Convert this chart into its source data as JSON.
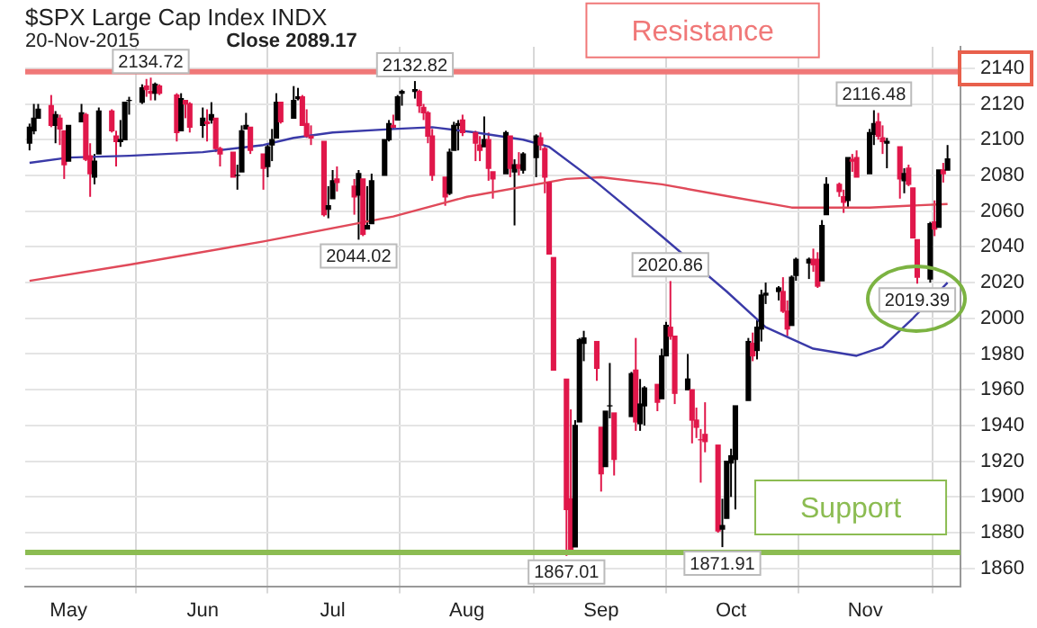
{
  "chart_data": {
    "type": "candlestick",
    "title": "$SPX Large Cap Index INDX",
    "subtitle": "20-Nov-2015",
    "x": [
      "2015-04-22",
      "2015-04-23",
      "2015-04-24",
      "2015-04-27",
      "2015-04-28",
      "2015-04-29",
      "2015-04-30",
      "2015-05-01",
      "2015-05-04",
      "2015-05-05",
      "2015-05-06",
      "2015-05-07",
      "2015-05-08",
      "2015-05-11",
      "2015-05-12",
      "2015-05-13",
      "2015-05-14",
      "2015-05-15",
      "2015-05-18",
      "2015-05-19",
      "2015-05-20",
      "2015-05-21",
      "2015-05-22",
      "2015-05-26",
      "2015-05-27",
      "2015-05-28",
      "2015-05-29",
      "2015-06-01",
      "2015-06-02",
      "2015-06-03",
      "2015-06-04",
      "2015-06-05",
      "2015-06-08",
      "2015-06-09",
      "2015-06-10",
      "2015-06-11",
      "2015-06-12",
      "2015-06-15",
      "2015-06-16",
      "2015-06-17",
      "2015-06-18",
      "2015-06-19",
      "2015-06-22",
      "2015-06-23",
      "2015-06-24",
      "2015-06-25",
      "2015-06-26",
      "2015-06-29",
      "2015-06-30",
      "2015-07-01",
      "2015-07-02",
      "2015-07-06",
      "2015-07-07",
      "2015-07-08",
      "2015-07-09",
      "2015-07-10",
      "2015-07-13",
      "2015-07-14",
      "2015-07-15",
      "2015-07-16",
      "2015-07-17",
      "2015-07-20",
      "2015-07-21",
      "2015-07-22",
      "2015-07-23",
      "2015-07-24",
      "2015-07-27",
      "2015-07-28",
      "2015-07-29",
      "2015-07-30",
      "2015-07-31",
      "2015-08-03",
      "2015-08-04",
      "2015-08-05",
      "2015-08-06",
      "2015-08-07",
      "2015-08-10",
      "2015-08-11",
      "2015-08-12",
      "2015-08-13",
      "2015-08-14",
      "2015-08-17",
      "2015-08-18",
      "2015-08-19",
      "2015-08-20",
      "2015-08-21",
      "2015-08-24",
      "2015-08-25",
      "2015-08-26",
      "2015-08-27",
      "2015-08-28",
      "2015-08-31",
      "2015-09-01",
      "2015-09-02",
      "2015-09-03",
      "2015-09-04",
      "2015-09-08",
      "2015-09-09",
      "2015-09-10",
      "2015-09-11",
      "2015-09-14",
      "2015-09-15",
      "2015-09-16",
      "2015-09-17",
      "2015-09-18",
      "2015-09-21",
      "2015-09-22",
      "2015-09-23",
      "2015-09-24",
      "2015-09-25",
      "2015-09-28",
      "2015-09-29",
      "2015-09-30",
      "2015-10-01",
      "2015-10-02",
      "2015-10-05",
      "2015-10-06",
      "2015-10-07",
      "2015-10-08",
      "2015-10-09",
      "2015-10-12",
      "2015-10-13",
      "2015-10-14",
      "2015-10-15",
      "2015-10-16",
      "2015-10-19",
      "2015-10-20",
      "2015-10-21",
      "2015-10-22",
      "2015-10-23",
      "2015-10-26",
      "2015-10-27",
      "2015-10-28",
      "2015-10-29",
      "2015-10-30",
      "2015-11-02",
      "2015-11-03",
      "2015-11-04",
      "2015-11-05",
      "2015-11-06",
      "2015-11-09",
      "2015-11-10",
      "2015-11-11",
      "2015-11-12",
      "2015-11-13",
      "2015-11-16",
      "2015-11-17",
      "2015-11-18",
      "2015-11-19",
      "2015-11-20"
    ],
    "ohlc": [
      [
        2098,
        2109,
        2094,
        2107
      ],
      [
        2105,
        2120,
        2103,
        2112
      ],
      [
        2112,
        2120,
        2112,
        2117
      ],
      [
        2119,
        2125,
        2107,
        2108
      ],
      [
        2108,
        2116,
        2098,
        2114
      ],
      [
        2112,
        2114,
        2097,
        2106
      ],
      [
        2105,
        2105,
        2078,
        2086
      ],
      [
        2088,
        2108,
        2088,
        2108
      ],
      [
        2110,
        2120,
        2110,
        2115
      ],
      [
        2114,
        2115,
        2088,
        2089
      ],
      [
        2091,
        2098,
        2068,
        2081
      ],
      [
        2079,
        2092,
        2075,
        2088
      ],
      [
        2092,
        2118,
        2092,
        2116
      ],
      [
        2116,
        2117,
        2104,
        2105
      ],
      [
        2102,
        2105,
        2085,
        2099
      ],
      [
        2100,
        2111,
        2096,
        2099
      ],
      [
        2100,
        2121,
        2100,
        2121
      ],
      [
        2122,
        2124,
        2114,
        2122
      ],
      [
        2121,
        2131,
        2120,
        2129
      ],
      [
        2130,
        2134,
        2124,
        2128
      ],
      [
        2127,
        2134.72,
        2122,
        2126
      ],
      [
        2126,
        2132,
        2122,
        2131
      ],
      [
        2130,
        2131,
        2125,
        2126
      ],
      [
        2125,
        2126,
        2099,
        2104
      ],
      [
        2105,
        2126,
        2105,
        2123
      ],
      [
        2122,
        2122,
        2112,
        2120
      ],
      [
        2120,
        2121,
        2104,
        2107
      ],
      [
        2108,
        2118,
        2101,
        2112
      ],
      [
        2110,
        2117,
        2099,
        2109
      ],
      [
        2111,
        2121,
        2109,
        2114
      ],
      [
        2112,
        2112,
        2093,
        2095
      ],
      [
        2095,
        2096,
        2085,
        2092
      ],
      [
        2093,
        2093,
        2079,
        2079
      ],
      [
        2080,
        2086,
        2072,
        2080
      ],
      [
        2082,
        2108,
        2082,
        2105
      ],
      [
        2106,
        2115,
        2106,
        2108
      ],
      [
        2107,
        2107,
        2092,
        2094
      ],
      [
        2092,
        2092,
        2072,
        2084
      ],
      [
        2085,
        2098,
        2079,
        2096
      ],
      [
        2097,
        2106,
        2088,
        2100
      ],
      [
        2101,
        2126,
        2101,
        2121
      ],
      [
        2121,
        2121,
        2109,
        2110
      ],
      [
        2112,
        2130,
        2112,
        2122
      ],
      [
        2123,
        2129,
        2122,
        2124
      ],
      [
        2124,
        2125,
        2108,
        2108
      ],
      [
        2109,
        2117,
        2101,
        2102
      ],
      [
        2102,
        2108,
        2097,
        2101
      ],
      [
        2099,
        2099,
        2057,
        2058
      ],
      [
        2061,
        2074,
        2056,
        2063
      ],
      [
        2067,
        2083,
        2067,
        2077
      ],
      [
        2078,
        2085,
        2071,
        2076
      ],
      [
        2074,
        2078,
        2058,
        2068
      ],
      [
        2069,
        2083,
        2044.02,
        2081
      ],
      [
        2078,
        2078,
        2046,
        2047
      ],
      [
        2050,
        2074,
        2050,
        2052
      ],
      [
        2053,
        2081,
        2053,
        2077
      ],
      [
        2080,
        2100,
        2080,
        2100
      ],
      [
        2100,
        2111,
        2099,
        2109
      ],
      [
        2108,
        2114,
        2106,
        2107
      ],
      [
        2111,
        2125,
        2111,
        2124
      ],
      [
        2126,
        2128,
        2119,
        2127
      ],
      [
        2127,
        2132.82,
        2123,
        2128
      ],
      [
        2127,
        2128,
        2115,
        2119
      ],
      [
        2118,
        2120,
        2111,
        2115
      ],
      [
        2115,
        2116,
        2098,
        2102
      ],
      [
        2102,
        2106,
        2077,
        2080
      ],
      [
        2079,
        2079,
        2063,
        2068
      ],
      [
        2070,
        2095,
        2069,
        2093
      ],
      [
        2094,
        2110,
        2094,
        2108
      ],
      [
        2108,
        2111,
        2094,
        2109
      ],
      [
        2111,
        2114,
        2102,
        2104
      ],
      [
        2104,
        2105,
        2088,
        2098
      ],
      [
        2097,
        2102,
        2088,
        2094
      ],
      [
        2096,
        2113,
        2096,
        2100
      ],
      [
        2100,
        2104,
        2077,
        2084
      ],
      [
        2082,
        2082,
        2067,
        2078
      ],
      [
        2081,
        2105,
        2081,
        2104
      ],
      [
        2102,
        2102,
        2079,
        2084
      ],
      [
        2082,
        2089,
        2052,
        2086
      ],
      [
        2086,
        2093,
        2080,
        2084
      ],
      [
        2083,
        2093,
        2081,
        2092
      ],
      [
        2090,
        2103,
        2079,
        2102
      ],
      [
        2101,
        2104,
        2094,
        2097
      ],
      [
        2095,
        2096,
        2070,
        2079
      ],
      [
        2076,
        2076,
        2036,
        2036
      ],
      [
        2034,
        2034,
        1971,
        1971
      ],
      [
        1966,
        1966,
        1867.01,
        1893
      ],
      [
        1899,
        1949,
        1868,
        1868
      ],
      [
        1872,
        1943,
        1872,
        1940
      ],
      [
        1942,
        1989,
        1942,
        1988
      ],
      [
        1986,
        1993,
        1976,
        1989
      ],
      [
        1987,
        1987,
        1965,
        1972
      ],
      [
        1939,
        1939,
        1903,
        1913
      ],
      [
        1917,
        1948,
        1917,
        1948
      ],
      [
        1951,
        1975,
        1944,
        1951
      ],
      [
        1947,
        1947,
        1912,
        1921
      ],
      [
        1945,
        1970,
        1945,
        1969
      ],
      [
        1971,
        1989,
        1937,
        1942
      ],
      [
        1941,
        1966,
        1937,
        1952
      ],
      [
        1951,
        1962,
        1940,
        1961
      ],
      [
        1963,
        1963,
        1948,
        1953
      ],
      [
        1955,
        1983,
        1955,
        1979
      ],
      [
        1979,
        1998,
        1979,
        1996
      ],
      [
        1995,
        2020.86,
        1988,
        1990
      ],
      [
        1990,
        1990,
        1952,
        1958
      ],
      [
        1960,
        1980,
        1960,
        1966
      ],
      [
        1960,
        1960,
        1930,
        1943
      ],
      [
        1943,
        1950,
        1933,
        1939
      ],
      [
        1932,
        1938,
        1908,
        1932
      ],
      [
        1935,
        1953,
        1925,
        1931
      ],
      [
        1929,
        1929,
        1880,
        1881
      ],
      [
        1882,
        1899,
        1871.91,
        1884
      ],
      [
        1888,
        1920,
        1888,
        1920
      ],
      [
        1919,
        1927,
        1900,
        1923
      ],
      [
        1921,
        1951,
        1893,
        1951
      ],
      [
        1954,
        1989,
        1954,
        1987
      ],
      [
        1986,
        1992,
        1976,
        1979
      ],
      [
        1982,
        1999,
        1977,
        1995
      ],
      [
        1994,
        2016,
        1987,
        2013
      ],
      [
        2013,
        2020,
        2008,
        2014
      ],
      [
        2015,
        2018,
        2010,
        2017
      ],
      [
        2015,
        2023,
        2003,
        2004
      ],
      [
        2004,
        2010,
        1990,
        1994
      ],
      [
        1996,
        2024,
        1996,
        2023
      ],
      [
        2024,
        2034,
        2021,
        2033
      ],
      [
        2031,
        2034,
        2022,
        2033
      ],
      [
        2033,
        2039,
        2026,
        2030
      ],
      [
        2033,
        2037,
        2017,
        2018
      ],
      [
        2021,
        2055,
        2021,
        2052
      ],
      [
        2058,
        2079,
        2058,
        2075
      ],
      [
        2075,
        2076,
        2068,
        2071
      ],
      [
        2068,
        2072,
        2059,
        2065
      ],
      [
        2066,
        2090,
        2062,
        2090
      ],
      [
        2088,
        2092,
        2082,
        2089
      ],
      [
        2090,
        2094,
        2079,
        2079
      ],
      [
        2081,
        2106,
        2081,
        2104
      ],
      [
        2103,
        2116.48,
        2097,
        2109
      ],
      [
        2110,
        2115,
        2100,
        2102
      ],
      [
        2101,
        2108,
        2092,
        2099
      ],
      [
        2098,
        2101,
        2084,
        2099
      ],
      [
        2096,
        2096,
        2067,
        2078
      ],
      [
        2077,
        2084,
        2070,
        2081
      ],
      [
        2084,
        2086,
        2074,
        2075
      ],
      [
        2073,
        2073,
        2045,
        2045
      ],
      [
        2044,
        2044,
        2019.39,
        2023
      ],
      [
        2022,
        2054,
        2020,
        2053
      ],
      [
        2054,
        2066,
        2046,
        2050
      ],
      [
        2051,
        2083,
        2051,
        2083
      ],
      [
        2083,
        2087,
        2076,
        2081
      ],
      [
        2083,
        2097,
        2083,
        2089.17
      ]
    ],
    "colors": [
      "#000000",
      "#000000",
      "#000000",
      "#e0174a",
      "#000000",
      "#e0174a",
      "#e0174a",
      "#000000",
      "#000000",
      "#e0174a",
      "#e0174a",
      "#000000",
      "#000000",
      "#e0174a",
      "#e0174a",
      "#000000",
      "#000000",
      "#000000",
      "#000000",
      "#e0174a",
      "#e0174a",
      "#000000",
      "#e0174a",
      "#e0174a",
      "#000000",
      "#e0174a",
      "#e0174a",
      "#000000",
      "#e0174a",
      "#000000",
      "#e0174a",
      "#e0174a",
      "#e0174a",
      "#000000",
      "#000000",
      "#000000",
      "#e0174a",
      "#e0174a",
      "#000000",
      "#000000",
      "#000000",
      "#e0174a",
      "#000000",
      "#000000",
      "#e0174a",
      "#e0174a",
      "#e0174a",
      "#e0174a",
      "#000000",
      "#000000",
      "#e0174a",
      "#e0174a",
      "#000000",
      "#e0174a",
      "#000000",
      "#000000",
      "#000000",
      "#000000",
      "#e0174a",
      "#000000",
      "#000000",
      "#000000",
      "#e0174a",
      "#e0174a",
      "#e0174a",
      "#e0174a",
      "#e0174a",
      "#000000",
      "#000000",
      "#000000",
      "#e0174a",
      "#e0174a",
      "#e0174a",
      "#000000",
      "#e0174a",
      "#e0174a",
      "#000000",
      "#e0174a",
      "#000000",
      "#e0174a",
      "#000000",
      "#000000",
      "#e0174a",
      "#e0174a",
      "#e0174a",
      "#e0174a",
      "#e0174a",
      "#e0174a",
      "#000000",
      "#000000",
      "#000000",
      "#e0174a",
      "#e0174a",
      "#000000",
      "#000000",
      "#e0174a",
      "#000000",
      "#e0174a",
      "#000000",
      "#000000",
      "#e0174a",
      "#000000",
      "#000000",
      "#e0174a",
      "#e0174a",
      "#000000",
      "#e0174a",
      "#e0174a",
      "#e0174a",
      "#e0174a",
      "#e0174a",
      "#000000",
      "#000000",
      "#000000",
      "#000000",
      "#000000",
      "#e0174a",
      "#000000",
      "#000000",
      "#000000",
      "#000000",
      "#e0174a",
      "#e0174a",
      "#000000",
      "#000000",
      "#000000",
      "#e0174a",
      "#e0174a",
      "#000000",
      "#000000",
      "#e0174a",
      "#e0174a",
      "#000000",
      "#e0174a",
      "#e0174a",
      "#000000",
      "#000000",
      "#e0174a",
      "#e0174a",
      "#000000",
      "#e0174a",
      "#000000",
      "#e0174a",
      "#e0174a",
      "#e0174a",
      "#000000",
      "#e0174a",
      "#000000",
      "#e0174a",
      "#000000"
    ],
    "series": [
      {
        "type": "line",
        "color": "#3a3aa8",
        "x": [
          "2015-04-22",
          "2015-05-01",
          "2015-05-15",
          "2015-06-01",
          "2015-06-15",
          "2015-06-22",
          "2015-07-01",
          "2015-07-15",
          "2015-07-24",
          "2015-08-03",
          "2015-08-14",
          "2015-08-20",
          "2015-08-31",
          "2015-09-15",
          "2015-09-30",
          "2015-10-09",
          "2015-10-20",
          "2015-10-30",
          "2015-11-05",
          "2015-11-12",
          "2015-11-20"
        ],
        "values": [
          2087,
          2090,
          2091,
          2093,
          2097,
          2101,
          2104,
          2106,
          2107,
          2104,
          2100,
          2096,
          2076,
          2046,
          2015,
          1995,
          1983,
          1979,
          1984,
          2000,
          2020
        ]
      },
      {
        "type": "line",
        "color": "#e04a5a",
        "x": [
          "2015-04-22",
          "2015-05-15",
          "2015-06-15",
          "2015-07-15",
          "2015-08-01",
          "2015-08-24",
          "2015-09-01",
          "2015-09-15",
          "2015-10-01",
          "2015-10-15",
          "2015-11-02",
          "2015-11-20"
        ],
        "values": [
          2021,
          2030,
          2043,
          2057,
          2068,
          2078,
          2079,
          2075,
          2068,
          2062,
          2062,
          2064
        ]
      }
    ],
    "xlim": [
      "2015-04-21",
      "2015-11-23"
    ],
    "xticks": [
      {
        "value": "2015-05-01",
        "label": "May"
      },
      {
        "value": "2015-06-01",
        "label": "Jun"
      },
      {
        "value": "2015-07-01",
        "label": "Jul"
      },
      {
        "value": "2015-08-01",
        "label": "Aug"
      },
      {
        "value": "2015-09-01",
        "label": "Sep"
      },
      {
        "value": "2015-10-01",
        "label": "Oct"
      },
      {
        "value": "2015-11-01",
        "label": "Nov"
      }
    ],
    "ylim": [
      1850,
      2152
    ],
    "yticks": [
      1860,
      1880,
      1900,
      1920,
      1940,
      1960,
      1980,
      2000,
      2020,
      2040,
      2060,
      2080,
      2100,
      2120,
      2140
    ],
    "grid": true,
    "legend": false,
    "line_style": "solid",
    "marker": "none",
    "ref_lines": [
      {
        "axis": "y",
        "value": 2138,
        "label": "Resistance",
        "color": "#f07878"
      },
      {
        "axis": "y",
        "value": 1869,
        "label": "Support",
        "color": "#8cbc52"
      }
    ],
    "annotations": [
      "Close 2089.17",
      {
        "text": "2134.72",
        "x": "2015-05-20",
        "y": 2134.72
      },
      {
        "text": "2132.82",
        "x": "2015-07-20",
        "y": 2132.82
      },
      {
        "text": "2044.02",
        "x": "2015-07-07",
        "y": 2044.02
      },
      {
        "text": "1867.01",
        "x": "2015-08-24",
        "y": 1867.01
      },
      {
        "text": "2020.86",
        "x": "2015-09-17",
        "y": 2020.86
      },
      {
        "text": "1871.91",
        "x": "2015-09-29",
        "y": 1871.91
      },
      {
        "text": "2116.48",
        "x": "2015-11-03",
        "y": 2116.48
      },
      {
        "text": "2019.39",
        "x": "2015-11-13",
        "y": 2019.39
      }
    ]
  }
}
